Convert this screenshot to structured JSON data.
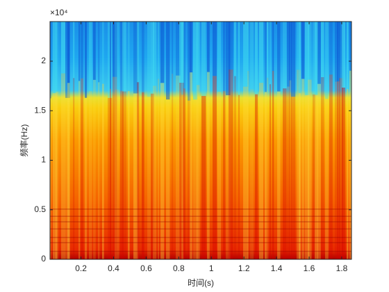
{
  "chart_data": {
    "type": "spectrogram",
    "xlabel": "时间(s)",
    "ylabel": "频率(Hz)",
    "y_exponent": "×10⁴",
    "xlim": [
      0.01,
      1.86
    ],
    "xticks": [
      0.2,
      0.4,
      0.6,
      0.8,
      1,
      1.2,
      1.4,
      1.6,
      1.8
    ],
    "ylim": [
      0,
      2.4
    ],
    "yticks": [
      0,
      0.5,
      1,
      1.5,
      2
    ]
  }
}
